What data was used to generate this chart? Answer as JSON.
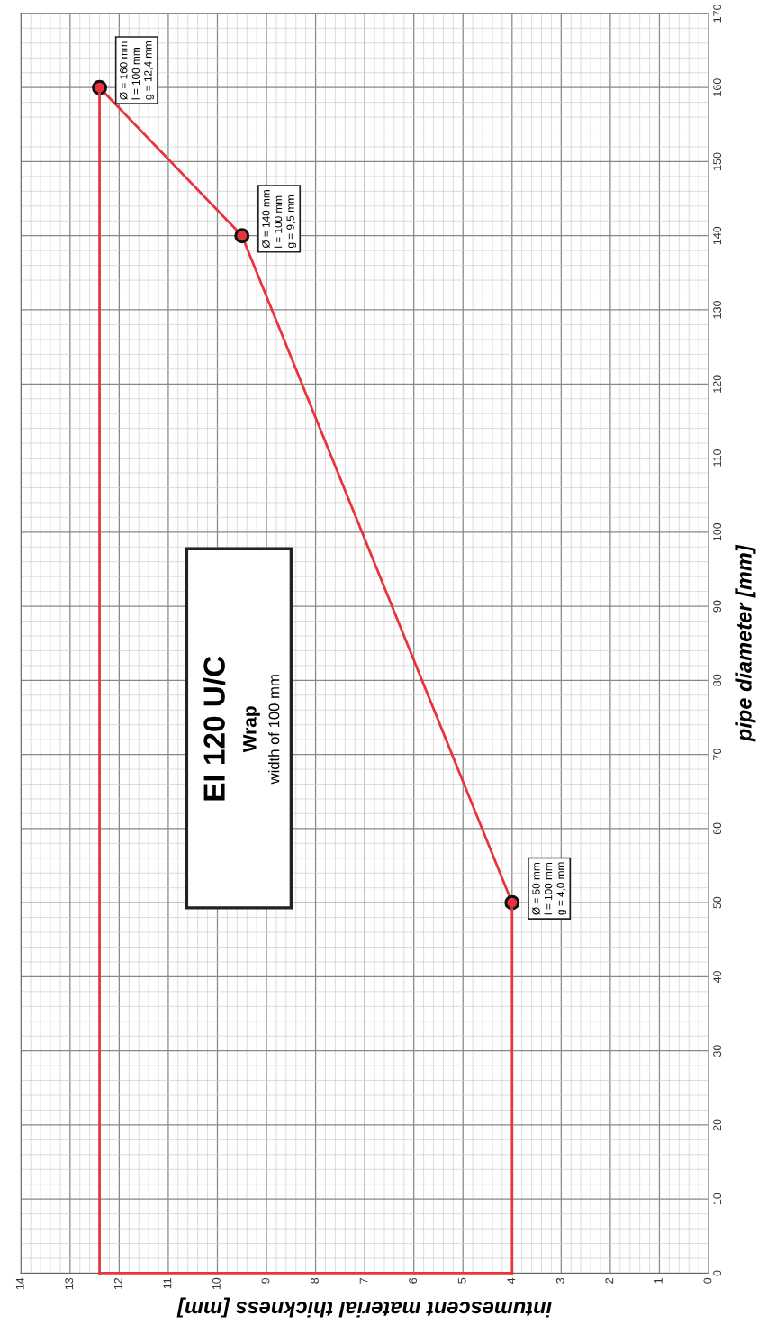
{
  "chart_data": {
    "type": "line",
    "xlabel": "intumescent material thickness [mm]",
    "ylabel": "pipe diameter [mm]",
    "xlim": [
      14,
      0
    ],
    "xticks": [
      0,
      1,
      2,
      3,
      4,
      5,
      6,
      7,
      8,
      9,
      10,
      11,
      12,
      13,
      14
    ],
    "ylim": [
      0,
      170
    ],
    "yticks": [
      0,
      10,
      20,
      30,
      40,
      50,
      60,
      70,
      80,
      90,
      100,
      110,
      120,
      130,
      140,
      150,
      160,
      170
    ],
    "grid": true,
    "series": [
      {
        "color": "#e8343c",
        "x": [
          4,
          9.5,
          12.4
        ],
        "values": [
          50,
          140,
          160
        ],
        "marker": "circle"
      },
      {
        "type": "line",
        "color": "#e8343c",
        "x": [
          4,
          4
        ],
        "values": [
          0,
          50
        ],
        "marker": "none"
      },
      {
        "type": "line",
        "color": "#e8343c",
        "x": [
          12.4,
          12.4
        ],
        "values": [
          0,
          160
        ],
        "marker": "none"
      },
      {
        "type": "line",
        "color": "#e8343c",
        "x": [
          4,
          12.4
        ],
        "values": [
          0,
          0
        ],
        "marker": "none"
      }
    ],
    "annotations": [
      {
        "text": "Ø = 50 mm\nl = 100 mm\ng = 4,0 mm",
        "x": 4,
        "y": 50
      },
      {
        "text": "Ø = 140 mm\nl = 100 mm\ng = 9,5 mm",
        "x": 9.5,
        "y": 140
      },
      {
        "text": "Ø = 160 mm\nl = 100 mm\ng = 12,4 mm",
        "x": 12.4,
        "y": 160
      },
      "EI 120 U/C",
      "Wrap",
      "width of 100 mm"
    ]
  }
}
